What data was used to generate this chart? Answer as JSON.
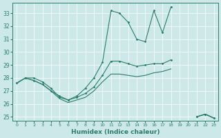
{
  "xlabel": "Humidex (Indice chaleur)",
  "bg_color": "#cde8e8",
  "grid_color": "#b8d8d8",
  "line_color": "#2a7d6e",
  "xlim": [
    -0.5,
    23.5
  ],
  "ylim": [
    24.7,
    33.8
  ],
  "yticks": [
    25,
    26,
    27,
    28,
    29,
    30,
    31,
    32,
    33
  ],
  "xticks": [
    0,
    1,
    2,
    3,
    4,
    5,
    6,
    7,
    8,
    9,
    10,
    11,
    12,
    13,
    14,
    15,
    16,
    17,
    18,
    19,
    20,
    21,
    22,
    23
  ],
  "s1y": [
    27.6,
    28.0,
    28.0,
    27.7,
    27.2,
    26.5,
    26.3,
    26.6,
    27.2,
    28.0,
    29.2,
    33.2,
    33.0,
    32.3,
    31.0,
    30.8,
    33.2,
    31.5,
    33.5,
    null,
    null,
    25.0,
    25.2,
    24.9
  ],
  "s2y": [
    27.6,
    28.0,
    27.8,
    27.5,
    27.0,
    26.6,
    26.3,
    26.5,
    26.8,
    27.3,
    28.2,
    29.3,
    29.3,
    29.1,
    28.9,
    29.0,
    29.1,
    29.1,
    29.4,
    null,
    null,
    25.0,
    25.2,
    24.9
  ],
  "s3y": [
    27.6,
    28.0,
    27.8,
    27.5,
    27.0,
    26.4,
    26.1,
    26.3,
    26.5,
    27.0,
    27.7,
    28.3,
    28.3,
    28.2,
    28.1,
    28.2,
    28.4,
    28.5,
    28.7,
    null,
    null,
    25.0,
    25.2,
    24.9
  ]
}
